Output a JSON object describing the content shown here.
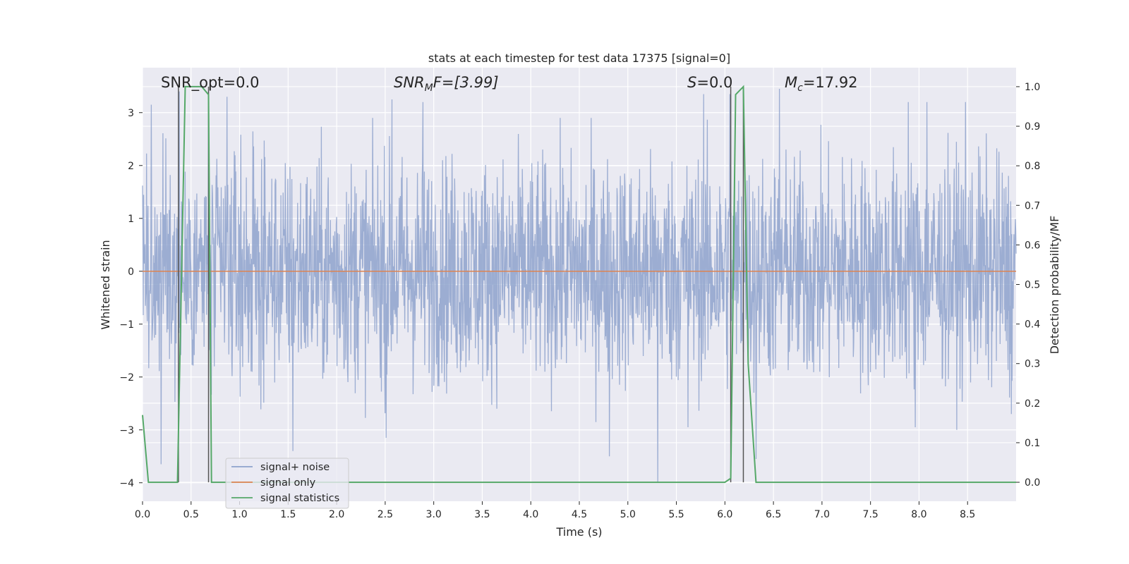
{
  "chart_data": {
    "type": "line",
    "title": "stats at each timestep for test data 17375 [signal=0]",
    "xlabel": "Time (s)",
    "ylabel": "Whitened strain",
    "y2label": "Detection probability/MF",
    "xlim": [
      0.0,
      9.0
    ],
    "ylim": [
      -4.35,
      3.85
    ],
    "y2lim": [
      -0.048,
      1.048
    ],
    "xticks": [
      "0.0",
      "0.5",
      "1.0",
      "1.5",
      "2.0",
      "2.5",
      "3.0",
      "3.5",
      "4.0",
      "4.5",
      "5.0",
      "5.5",
      "6.0",
      "6.5",
      "7.0",
      "7.5",
      "8.0",
      "8.5"
    ],
    "yticks": [
      "3",
      "2",
      "1",
      "0",
      "−1",
      "−2",
      "−3",
      "−4"
    ],
    "y2ticks": [
      "1.0",
      "0.9",
      "0.8",
      "0.7",
      "0.6",
      "0.5",
      "0.4",
      "0.3",
      "0.2",
      "0.1",
      "0.0"
    ],
    "grid": true,
    "legend_position": "lower-left",
    "annotations": {
      "snr_opt": "SNR_opt=0.0",
      "snr_mf_main": "SNR",
      "snr_mf_sub": "M",
      "snr_mf_rest": "F=[3.99]",
      "s_main": "S",
      "s_rest": "=0.0",
      "mc_main": "M",
      "mc_sub": "c",
      "mc_rest": "=17.92"
    },
    "series": [
      {
        "name": "signal+ noise",
        "color": "#8ea2cc",
        "description": "whitened noise, roughly uniform amplitude, extremes between about -4.0 and 3.45",
        "sample_peaks": [
          {
            "x": 0.09,
            "y": 3.15
          },
          {
            "x": 0.38,
            "y": 3.4
          },
          {
            "x": 0.68,
            "y": 3.4
          },
          {
            "x": 0.87,
            "y": 3.3
          },
          {
            "x": 2.57,
            "y": 3.25
          },
          {
            "x": 2.89,
            "y": 3.2
          },
          {
            "x": 5.78,
            "y": 3.35
          },
          {
            "x": 6.05,
            "y": 3.35
          },
          {
            "x": 6.56,
            "y": 3.45
          },
          {
            "x": 7.89,
            "y": 3.2
          },
          {
            "x": 8.08,
            "y": 3.2
          },
          {
            "x": 8.48,
            "y": 3.2
          }
        ],
        "sample_troughs": [
          {
            "x": 0.19,
            "y": -3.65
          },
          {
            "x": 1.55,
            "y": -3.4
          },
          {
            "x": 2.51,
            "y": -3.15
          },
          {
            "x": 4.81,
            "y": -3.5
          },
          {
            "x": 5.31,
            "y": -4.0
          },
          {
            "x": 5.62,
            "y": -2.95
          },
          {
            "x": 6.32,
            "y": -3.55
          },
          {
            "x": 7.96,
            "y": -2.95
          },
          {
            "x": 8.95,
            "y": -2.7
          }
        ]
      },
      {
        "name": "signal only",
        "color": "#dd8452",
        "x": [
          0.0,
          9.0
        ],
        "y": [
          0.0,
          0.0
        ]
      },
      {
        "name": "signal statistics",
        "color": "#55a868",
        "axis": "right",
        "x": [
          0.0,
          0.06,
          0.12,
          0.36,
          0.44,
          0.61,
          0.68,
          0.71,
          0.77,
          0.8,
          6.0,
          6.06,
          6.11,
          6.19,
          6.24,
          6.32,
          6.39,
          9.0
        ],
        "y": [
          0.17,
          0.0,
          0.0,
          0.0,
          1.0,
          1.0,
          0.98,
          0.0,
          0.0,
          0.0,
          0.0,
          0.01,
          0.98,
          1.0,
          0.3,
          0.0,
          0.0,
          0.0
        ]
      }
    ],
    "vertical_markers": {
      "color": "#555555",
      "x": [
        0.37,
        0.68,
        6.06,
        6.19
      ],
      "ybottom": 0.0,
      "ytop": 1.0
    }
  }
}
